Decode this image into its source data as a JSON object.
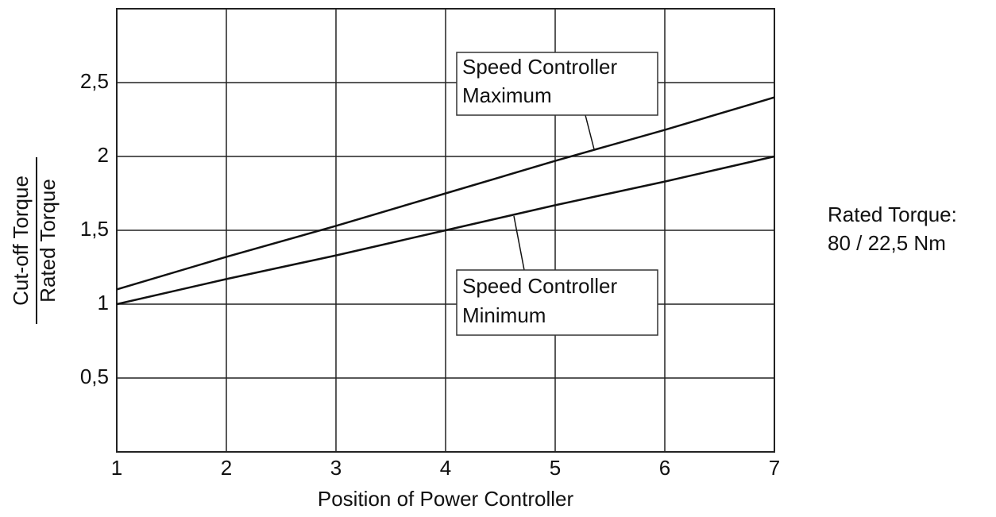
{
  "chart_data": {
    "type": "line",
    "ylabel": {
      "numerator": "Cut-off Torque",
      "denominator": "Rated Torque"
    },
    "xlabel": "Position of Power Controller",
    "x": [
      1,
      2,
      3,
      4,
      5,
      6,
      7
    ],
    "series": [
      {
        "name": "Speed Controller Maximum",
        "color": "#111111",
        "values": [
          1.1,
          1.32,
          1.53,
          1.75,
          1.97,
          2.18,
          2.4
        ]
      },
      {
        "name": "Speed Controller Minimum",
        "color": "#111111",
        "values": [
          1.0,
          1.17,
          1.33,
          1.5,
          1.67,
          1.83,
          2.0
        ]
      }
    ],
    "xlim": [
      1,
      7
    ],
    "xticks": [
      1,
      2,
      3,
      4,
      5,
      6,
      7
    ],
    "ylim": [
      0,
      3
    ],
    "yticks": [
      {
        "value": 0.5,
        "label": "0,5"
      },
      1,
      {
        "value": 1.5,
        "label": "1,5"
      },
      2,
      {
        "value": 2.5,
        "label": "2,5"
      }
    ],
    "grid": true,
    "annotations": [
      {
        "lines": [
          "Speed Controller",
          "Maximum"
        ]
      },
      {
        "lines": [
          "Speed Controller",
          "Minimum"
        ]
      }
    ],
    "note": {
      "lines": [
        "Rated Torque:",
        "80 / 22,5 Nm"
      ]
    }
  }
}
